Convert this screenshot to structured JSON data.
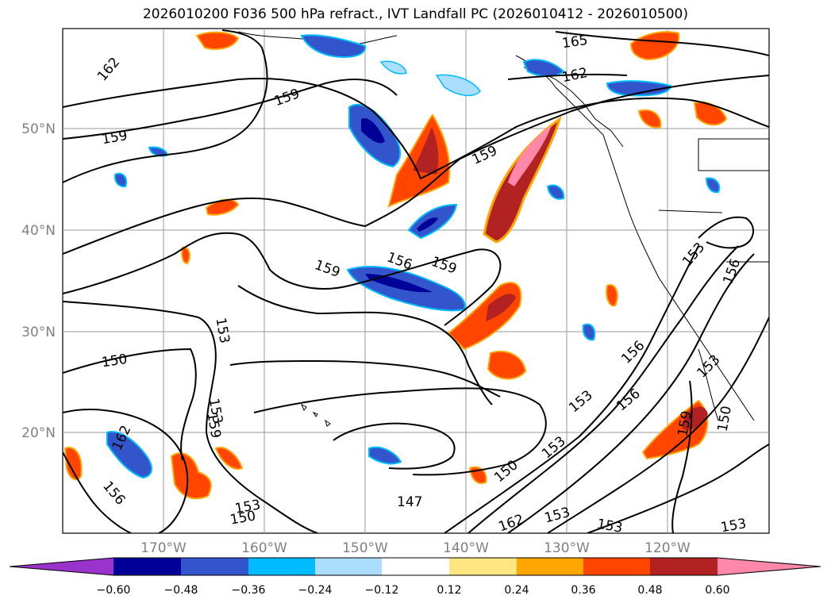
{
  "title": "2026010200 F036 500 hPa refract., IVT Landfall PC (2026010412 - 2026010500)",
  "lat_labels": [
    "50°N",
    "40°N",
    "30°N",
    "20°N"
  ],
  "lon_labels": [
    "170°W",
    "160°W",
    "150°W",
    "140°W",
    "130°W",
    "120°W"
  ],
  "contour_labels": [
    "162",
    "159",
    "159",
    "165",
    "162",
    "159",
    "159",
    "156",
    "159",
    "153",
    "150",
    "153",
    "159",
    "162",
    "156",
    "153",
    "150",
    "147",
    "150",
    "153",
    "153",
    "156",
    "156",
    "162",
    "153",
    "153",
    "153",
    "159",
    "150",
    "153",
    "156",
    "153"
  ],
  "colorbar": {
    "ticks": [
      "−0.60",
      "−0.48",
      "−0.36",
      "−0.24",
      "−0.12",
      "0.12",
      "0.24",
      "0.36",
      "0.48",
      "0.60"
    ],
    "colors": [
      "#9933cc",
      "#000099",
      "#3355cc",
      "#00bbff",
      "#aaddff",
      "#ffffff",
      "#ffe680",
      "#ffa500",
      "#ff4500",
      "#b22222",
      "#ff88aa"
    ]
  }
}
